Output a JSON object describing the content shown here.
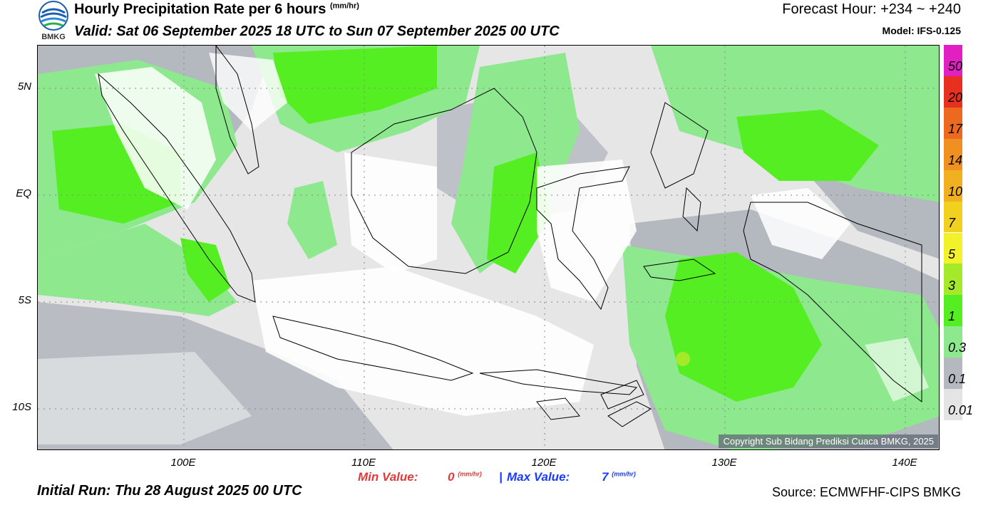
{
  "header": {
    "title": "Hourly Precipitation Rate per 6 hours",
    "title_unit_num": "mm",
    "title_unit_den": "hr",
    "valid": "Valid: Sat 06 September 2025 18 UTC to Sun 07 September 2025 00 UTC",
    "forecast_hour": "Forecast Hour: +234 ~ +240",
    "model": "Model: IFS-0.125",
    "logo_text": "BMKG"
  },
  "map": {
    "lat_labels": [
      "5N",
      "EQ",
      "5S",
      "10S"
    ],
    "lon_labels": [
      "100E",
      "110E",
      "120E",
      "130E",
      "140E"
    ],
    "copyright": "Copyright Sub Bidang Prediksi Cuaca BMKG, 2025"
  },
  "legend": {
    "levels": [
      {
        "label": "0.01",
        "color": "#e4e4e4"
      },
      {
        "label": "0.1",
        "color": "#b4b8bf"
      },
      {
        "label": "0.3",
        "color": "#8ee88e"
      },
      {
        "label": "1",
        "color": "#55ee22"
      },
      {
        "label": "3",
        "color": "#a4ea2a"
      },
      {
        "label": "5",
        "color": "#f2f22a"
      },
      {
        "label": "7",
        "color": "#f2d020"
      },
      {
        "label": "10",
        "color": "#f0b020"
      },
      {
        "label": "14",
        "color": "#f09020"
      },
      {
        "label": "17",
        "color": "#ec6a20"
      },
      {
        "label": "20",
        "color": "#e83020"
      },
      {
        "label": "50",
        "color": "#e020c0"
      }
    ]
  },
  "stats": {
    "min_label": "Min Value:",
    "min_value": "0",
    "separator": "|",
    "max_label": "Max Value:",
    "max_value": "7",
    "unit_num": "mm",
    "unit_den": "hr"
  },
  "footer": {
    "initial_run": "Initial Run: Thu 28 August 2025 00 UTC",
    "source": "Source: ECMWFHF-CIPS BMKG"
  }
}
